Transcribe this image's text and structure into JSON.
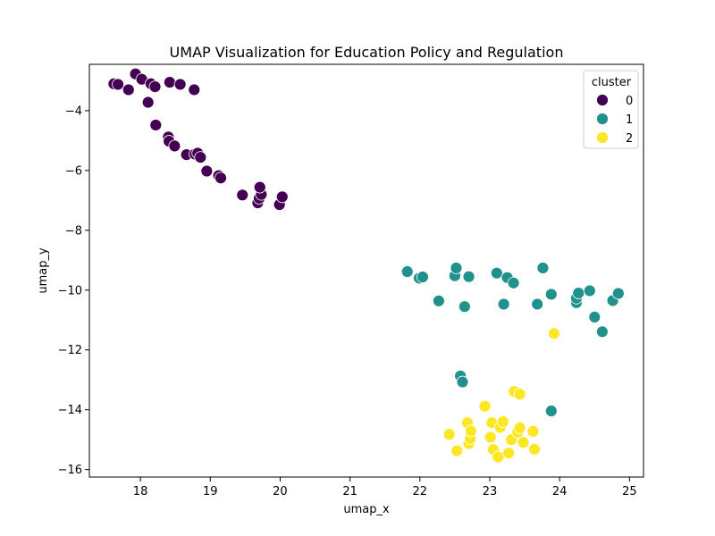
{
  "chart_data": {
    "type": "scatter",
    "title": "UMAP Visualization for Education Policy and Regulation",
    "xlabel": "umap_x",
    "ylabel": "umap_y",
    "xlim": [
      17.27,
      25.2
    ],
    "ylim": [
      -16.25,
      -2.45
    ],
    "xticks": [
      18,
      19,
      20,
      21,
      22,
      23,
      24,
      25
    ],
    "yticks": [
      -16,
      -14,
      -12,
      -10,
      -8,
      -6,
      -4
    ],
    "grid": false,
    "legend": {
      "title": "cluster",
      "placement": "top-right"
    },
    "series": [
      {
        "name": "0",
        "color": "#440154",
        "points": [
          [
            17.62,
            -3.1
          ],
          [
            17.68,
            -3.12
          ],
          [
            17.83,
            -3.3
          ],
          [
            17.93,
            -2.77
          ],
          [
            18.02,
            -2.95
          ],
          [
            18.15,
            -3.1
          ],
          [
            18.21,
            -3.2
          ],
          [
            18.42,
            -3.05
          ],
          [
            18.57,
            -3.12
          ],
          [
            18.77,
            -3.3
          ],
          [
            18.11,
            -3.72
          ],
          [
            18.22,
            -4.48
          ],
          [
            18.4,
            -4.88
          ],
          [
            18.41,
            -5.02
          ],
          [
            18.49,
            -5.18
          ],
          [
            18.66,
            -5.47
          ],
          [
            18.78,
            -5.45
          ],
          [
            18.82,
            -5.42
          ],
          [
            18.86,
            -5.56
          ],
          [
            18.95,
            -6.02
          ],
          [
            19.12,
            -6.17
          ],
          [
            19.15,
            -6.25
          ],
          [
            19.46,
            -6.82
          ],
          [
            19.68,
            -7.08
          ],
          [
            19.7,
            -6.93
          ],
          [
            19.73,
            -6.8
          ],
          [
            19.71,
            -6.56
          ],
          [
            19.99,
            -7.14
          ],
          [
            20.03,
            -6.88
          ]
        ]
      },
      {
        "name": "1",
        "color": "#21918c",
        "points": [
          [
            21.82,
            -9.38
          ],
          [
            21.99,
            -9.6
          ],
          [
            22.04,
            -9.56
          ],
          [
            22.27,
            -10.36
          ],
          [
            22.5,
            -9.52
          ],
          [
            22.52,
            -9.26
          ],
          [
            22.64,
            -10.55
          ],
          [
            22.7,
            -9.55
          ],
          [
            22.58,
            -12.87
          ],
          [
            22.61,
            -13.07
          ],
          [
            23.1,
            -9.43
          ],
          [
            23.2,
            -10.47
          ],
          [
            23.25,
            -9.58
          ],
          [
            23.34,
            -9.76
          ],
          [
            23.68,
            -10.47
          ],
          [
            23.76,
            -9.26
          ],
          [
            23.88,
            -10.14
          ],
          [
            23.88,
            -14.04
          ],
          [
            24.24,
            -10.42
          ],
          [
            24.24,
            -10.27
          ],
          [
            24.27,
            -10.1
          ],
          [
            24.43,
            -10.02
          ],
          [
            24.5,
            -10.9
          ],
          [
            24.61,
            -11.39
          ],
          [
            24.76,
            -10.35
          ],
          [
            24.84,
            -10.11
          ]
        ]
      },
      {
        "name": "2",
        "color": "#fde725",
        "points": [
          [
            23.92,
            -11.45
          ],
          [
            22.93,
            -13.88
          ],
          [
            23.35,
            -13.39
          ],
          [
            23.43,
            -13.48
          ],
          [
            22.42,
            -14.82
          ],
          [
            22.53,
            -15.37
          ],
          [
            22.68,
            -14.43
          ],
          [
            22.7,
            -15.13
          ],
          [
            22.72,
            -14.97
          ],
          [
            22.73,
            -14.71
          ],
          [
            23.01,
            -14.92
          ],
          [
            23.03,
            -14.43
          ],
          [
            23.05,
            -15.33
          ],
          [
            23.12,
            -15.58
          ],
          [
            23.15,
            -14.59
          ],
          [
            23.19,
            -14.4
          ],
          [
            23.27,
            -15.45
          ],
          [
            23.31,
            -15.0
          ],
          [
            23.4,
            -14.75
          ],
          [
            23.43,
            -14.6
          ],
          [
            23.48,
            -15.09
          ],
          [
            23.62,
            -14.72
          ],
          [
            23.64,
            -15.32
          ]
        ]
      }
    ]
  }
}
